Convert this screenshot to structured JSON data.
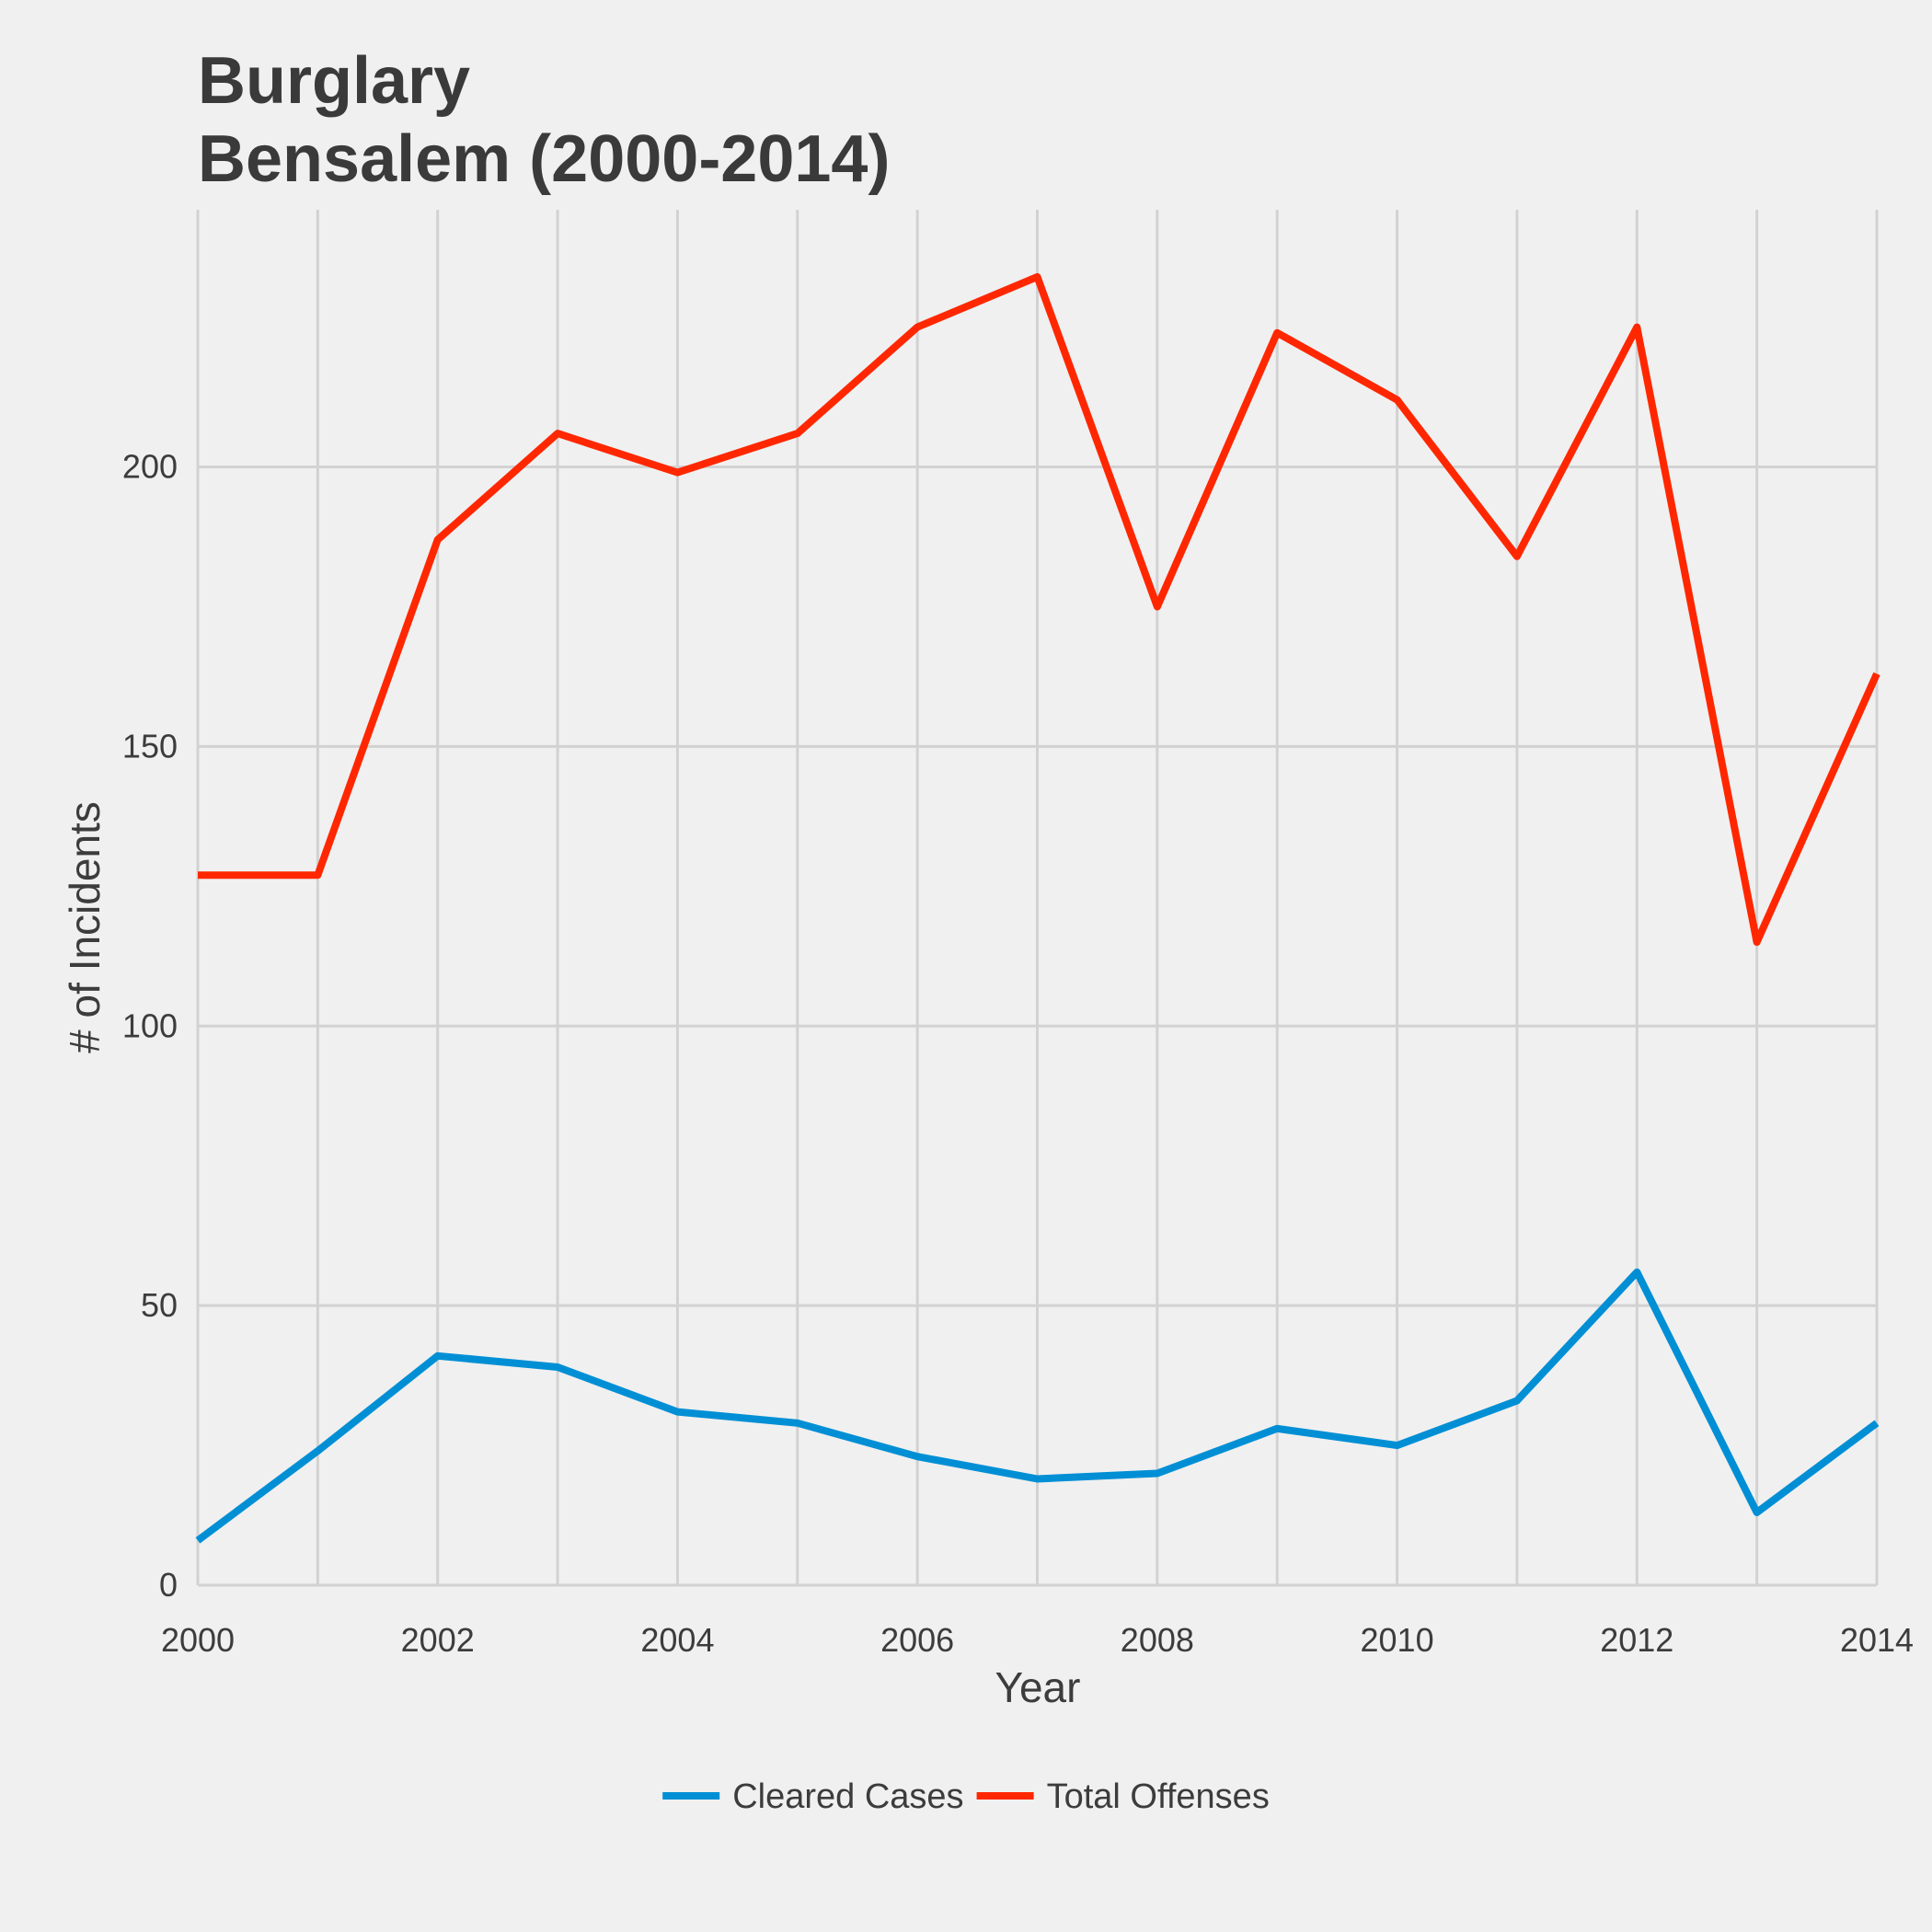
{
  "chart_data": {
    "type": "line",
    "title": "Burglary",
    "subtitle": "Bensalem (2000-2014)",
    "xlabel": "Year",
    "ylabel": "# of Incidents",
    "x": [
      2000,
      2001,
      2002,
      2003,
      2004,
      2005,
      2006,
      2007,
      2008,
      2009,
      2010,
      2011,
      2012,
      2013,
      2014
    ],
    "xlim": [
      2000,
      2014
    ],
    "ylim": [
      0,
      246
    ],
    "x_ticks": [
      2000,
      2002,
      2004,
      2006,
      2008,
      2010,
      2012,
      2014
    ],
    "y_ticks": [
      0,
      50,
      100,
      150,
      200
    ],
    "grid": true,
    "legend_position": "bottom",
    "series": [
      {
        "name": "Cleared Cases",
        "color": "#008fd5",
        "values": [
          8,
          24,
          41,
          39,
          31,
          29,
          23,
          19,
          20,
          28,
          25,
          33,
          56,
          13,
          29
        ]
      },
      {
        "name": "Total Offenses",
        "color": "#ff2700",
        "values": [
          127,
          127,
          187,
          206,
          199,
          206,
          225,
          234,
          175,
          224,
          212,
          184,
          225,
          115,
          163
        ]
      }
    ]
  }
}
